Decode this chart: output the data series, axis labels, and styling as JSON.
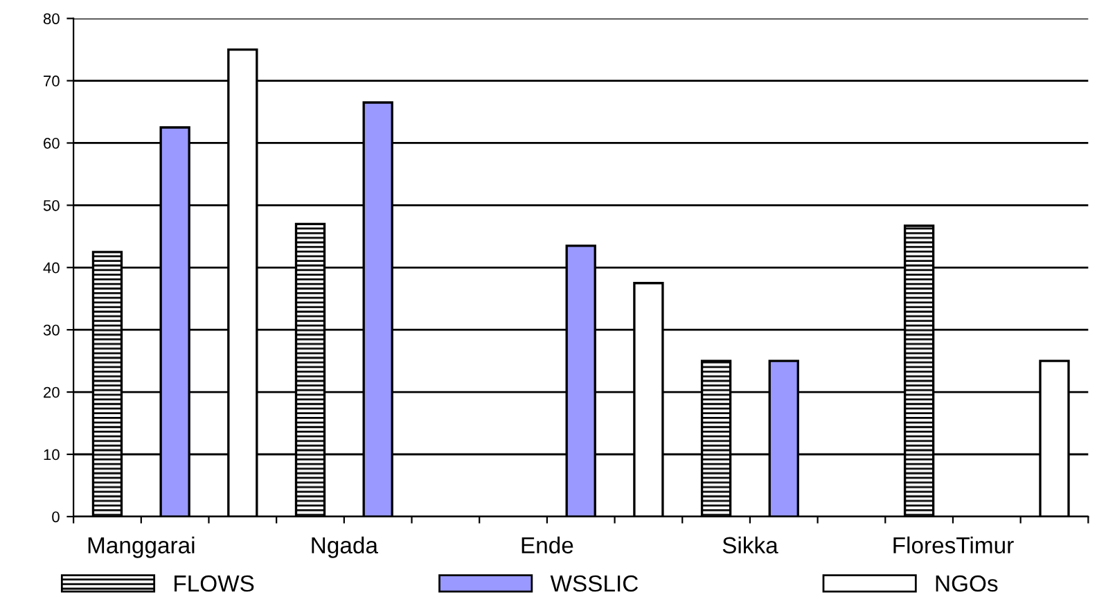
{
  "chart_data": {
    "type": "bar",
    "categories": [
      "Manggarai",
      "Ngada",
      "Ende",
      "Sikka",
      "FloresTimur"
    ],
    "series": [
      {
        "name": "FLOWS",
        "color": "#000000",
        "values": [
          42.5,
          47,
          null,
          25,
          46.7
        ]
      },
      {
        "name": "WSSLIC",
        "color": "#9999ff",
        "values": [
          62.5,
          66.5,
          43.5,
          25,
          null
        ]
      },
      {
        "name": "NGOs",
        "color": "#ffffff",
        "values": [
          75,
          null,
          37.5,
          null,
          25
        ]
      }
    ],
    "ylim": [
      0,
      80
    ],
    "yticks": [
      0,
      10,
      20,
      30,
      40,
      50,
      60,
      70,
      80
    ],
    "grid": "y",
    "legend": "bottom"
  }
}
